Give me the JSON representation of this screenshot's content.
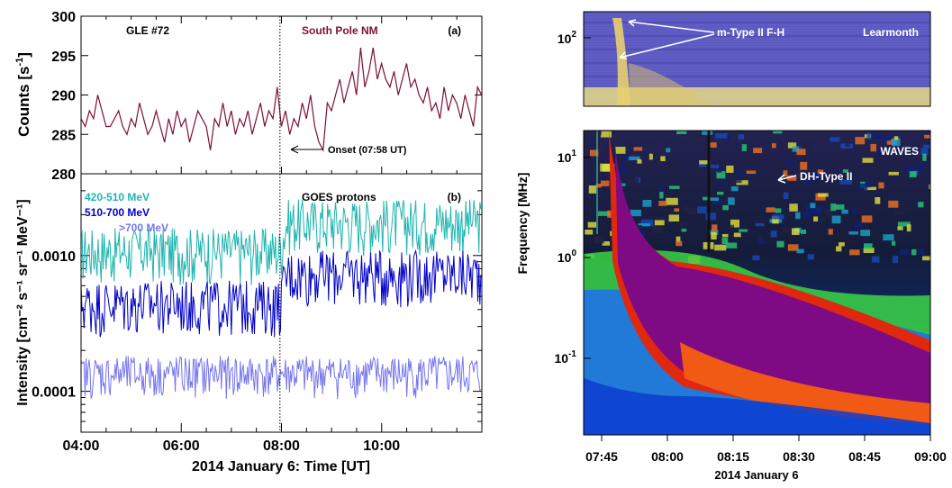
{
  "chart_data": [
    {
      "id": "a",
      "type": "line",
      "panel_label": "(a)",
      "title_left": "GLE #72",
      "title_right": "South Pole NM",
      "ylabel_main": "Counts [s",
      "ylabel_sup": "-1",
      "ylabel_end": "]",
      "ylim": [
        280,
        300
      ],
      "yticks": [
        "280",
        "285",
        "290",
        "295",
        "300"
      ],
      "xlim_hours": [
        4.0,
        12.0
      ],
      "annotation": "Onset (07:58 UT)",
      "onset_hour": 7.97,
      "color": "#7b1038",
      "series": [
        {
          "x_start_hour": 4.0,
          "x_step_hours": 0.0833,
          "values": [
            287,
            286,
            288,
            287,
            290,
            288,
            286,
            286,
            287,
            288,
            286,
            285,
            287,
            286,
            289,
            287,
            285,
            286,
            288,
            286,
            284,
            287,
            285,
            288,
            286,
            287,
            284,
            286,
            288,
            287,
            286,
            283,
            287,
            286,
            289,
            286,
            288,
            285,
            287,
            286,
            288,
            285,
            287,
            289,
            286,
            288,
            287,
            291,
            286,
            288,
            285,
            287,
            286,
            289,
            287,
            290,
            286,
            284,
            283,
            289,
            288,
            290,
            292,
            289,
            291,
            293,
            290,
            296,
            291,
            293,
            296,
            292,
            294,
            292,
            291,
            293,
            290,
            292,
            294,
            291,
            292,
            290,
            289,
            291,
            288,
            289,
            287,
            291,
            288,
            290,
            289,
            287,
            290,
            288,
            286,
            291,
            290
          ]
        }
      ]
    },
    {
      "id": "b",
      "type": "line",
      "panel_label": "(b)",
      "title": "GOES protons",
      "ylabel_text": "Intensity [cm⁻² s⁻¹ sr⁻¹ MeV⁻¹]",
      "yscale": "log",
      "ylim": [
        5e-05,
        0.004
      ],
      "yticks": [
        "0.0001",
        "0.0010"
      ],
      "xlim_hours": [
        4.0,
        12.0
      ],
      "xticks": [
        "04:00",
        "06:00",
        "08:00",
        "10:00"
      ],
      "xlabel": "2014 January 6: Time [UT]",
      "onset_hour": 7.97,
      "series": [
        {
          "name": "420-510 MeV",
          "color": "#1fb5b0",
          "base_before": 0.0011,
          "base_after": 0.0018,
          "x_start_hour": 4.0,
          "x_step_hours": 0.02,
          "count": 400
        },
        {
          "name": "510-700 MeV",
          "color": "#0000c8",
          "base_before": 0.00045,
          "base_after": 0.00075,
          "x_start_hour": 4.0,
          "x_step_hours": 0.02,
          "count": 400
        },
        {
          "name": ">700 MeV",
          "color": "#7575f0",
          "base_before": 0.000135,
          "base_after": 0.000135,
          "x_start_hour": 4.0,
          "x_step_hours": 0.02,
          "count": 400
        }
      ]
    },
    {
      "id": "c",
      "type": "heatmap",
      "top_label": "Learmonth",
      "top_yticks": [
        "10",
        "2"
      ],
      "bottom_label": "WAVES",
      "bottom_yticks": [
        {
          "base": "10",
          "exp": "1"
        },
        {
          "base": "10",
          "exp": "0"
        },
        {
          "base": "10",
          "exp": "-1"
        }
      ],
      "ylabel": "Frequency [MHz]",
      "xticks": [
        "07:45",
        "08:00",
        "08:15",
        "08:30",
        "08:45",
        "09:00"
      ],
      "xlabel": "2014 January 6",
      "annotations": [
        "m-Type II F-H",
        "DH-Type II"
      ],
      "colors": {
        "top_bg": "#5a58c0",
        "top_band": "#e6dc84",
        "bottom_bg": "#0a0a1e",
        "purple": "#7e0a84",
        "red": "#e0280e",
        "green": "#3ce046",
        "blue": "#1e6ef0"
      }
    }
  ]
}
